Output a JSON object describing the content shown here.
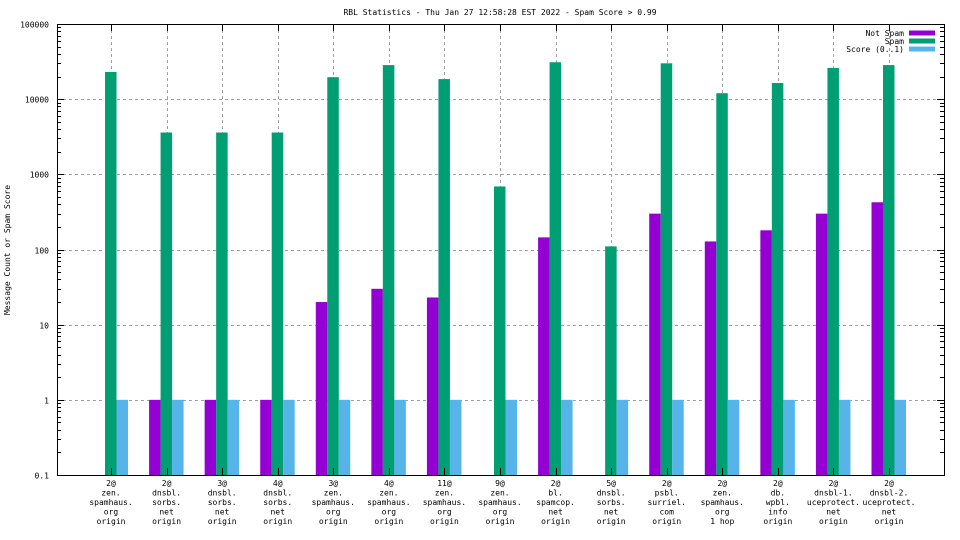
{
  "chart_data": {
    "type": "bar",
    "title": "RBL Statistics - Thu Jan 27 12:58:28 EST 2022 - Spam Score > 0.99",
    "xlabel": "",
    "ylabel": "Message Count or Spam Score",
    "yscale": "log",
    "ylim": [
      0.1,
      100000
    ],
    "yticks": [
      0.1,
      1,
      10,
      100,
      1000,
      10000,
      100000
    ],
    "ytick_labels": [
      "0.1",
      "1",
      "10",
      "100",
      "1000",
      "10000",
      "100000"
    ],
    "grid": true,
    "legend_position": "top-right",
    "categories": [
      [
        "2@",
        "zen.",
        "spamhaus.",
        "org",
        "origin"
      ],
      [
        "2@",
        "dnsbl.",
        "sorbs.",
        "net",
        "origin"
      ],
      [
        "3@",
        "dnsbl.",
        "sorbs.",
        "net",
        "origin"
      ],
      [
        "4@",
        "dnsbl.",
        "sorbs.",
        "net",
        "origin"
      ],
      [
        "3@",
        "zen.",
        "spamhaus.",
        "org",
        "origin"
      ],
      [
        "4@",
        "zen.",
        "spamhaus.",
        "org",
        "origin"
      ],
      [
        "11@",
        "zen.",
        "spamhaus.",
        "org",
        "origin"
      ],
      [
        "9@",
        "zen.",
        "spamhaus.",
        "org",
        "origin"
      ],
      [
        "2@",
        "bl.",
        "spamcop.",
        "net",
        "origin"
      ],
      [
        "5@",
        "dnsbl.",
        "sorbs.",
        "net",
        "origin"
      ],
      [
        "2@",
        "psbl.",
        "surriel.",
        "com",
        "origin"
      ],
      [
        "2@",
        "zen.",
        "spamhaus.",
        "org",
        "1 hop"
      ],
      [
        "2@",
        "db.",
        "wpbl.",
        "info",
        "origin"
      ],
      [
        "2@",
        "dnsbl-1.",
        "uceprotect.",
        "net",
        "origin"
      ],
      [
        "2@",
        "dnsbl-2.",
        "uceprotect.",
        "net",
        "origin"
      ]
    ],
    "series": [
      {
        "name": "Not Spam",
        "color": "#9400d3",
        "values": [
          null,
          1,
          1,
          1,
          20,
          30,
          23,
          null,
          145,
          null,
          300,
          128,
          180,
          300,
          425
        ]
      },
      {
        "name": "Spam",
        "color": "#009e73",
        "values": [
          23000,
          3600,
          3600,
          3600,
          19600,
          28400,
          18500,
          690,
          31000,
          110,
          30000,
          12000,
          16400,
          26000,
          28400
        ]
      },
      {
        "name": "Score (0..1)",
        "color": "#56b4e9",
        "values": [
          1,
          1,
          1,
          1,
          1,
          1,
          1,
          1,
          1,
          1,
          1,
          1,
          1,
          1,
          1
        ]
      }
    ]
  }
}
